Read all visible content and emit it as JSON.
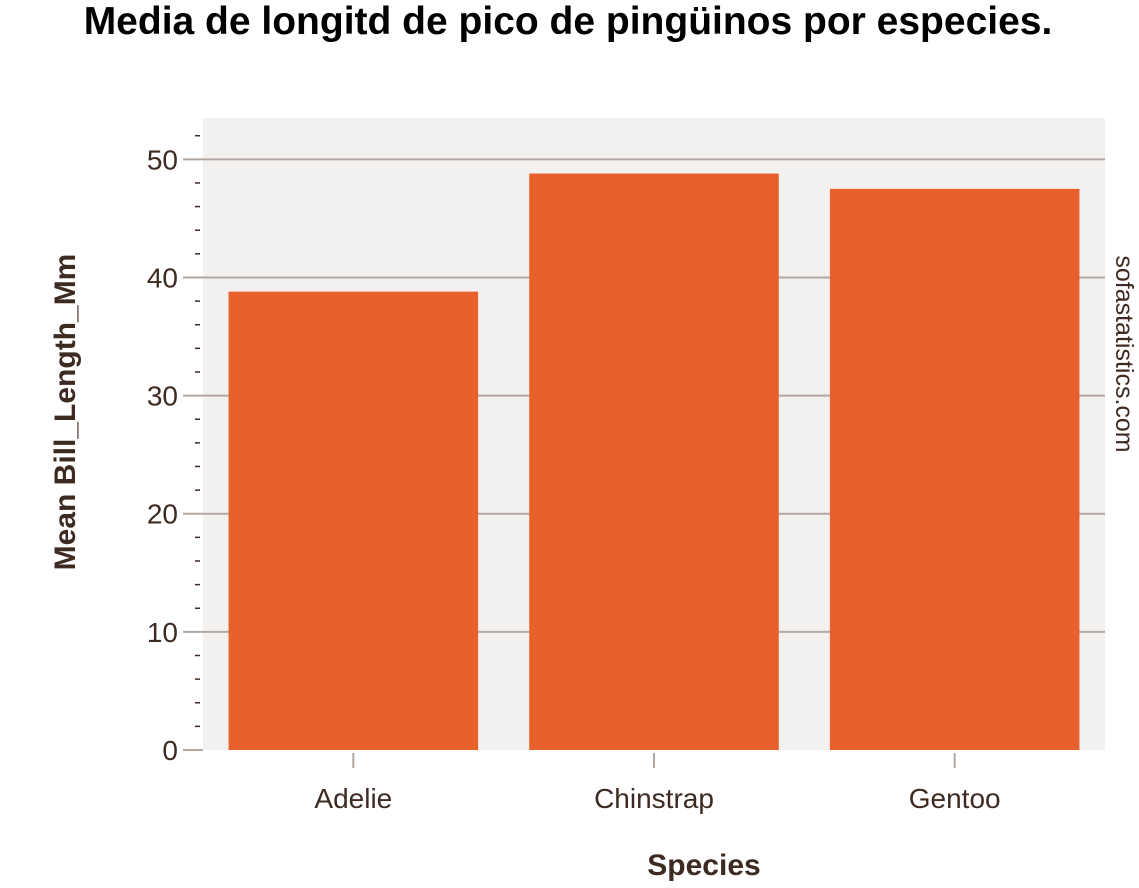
{
  "chart_data": {
    "type": "bar",
    "title": "Media de longitd de pico de pingüinos por especies.",
    "xlabel": "Species",
    "ylabel": "Mean Bill_Length_Mm",
    "categories": [
      "Adelie",
      "Chinstrap",
      "Gentoo"
    ],
    "values": [
      38.8,
      48.8,
      47.5
    ],
    "ylim": [
      0,
      53.5
    ],
    "yticks": [
      0,
      10,
      20,
      30,
      40,
      50
    ],
    "grid": true,
    "legend": "none",
    "watermark": "sofastatistics.com",
    "colors": {
      "bar": "#e8602c",
      "plot_background": "#f2f1ef",
      "grid": "#b5a8a2",
      "axis": "#b0a6a0",
      "text": "#3d2b22",
      "title": "#000000"
    }
  }
}
